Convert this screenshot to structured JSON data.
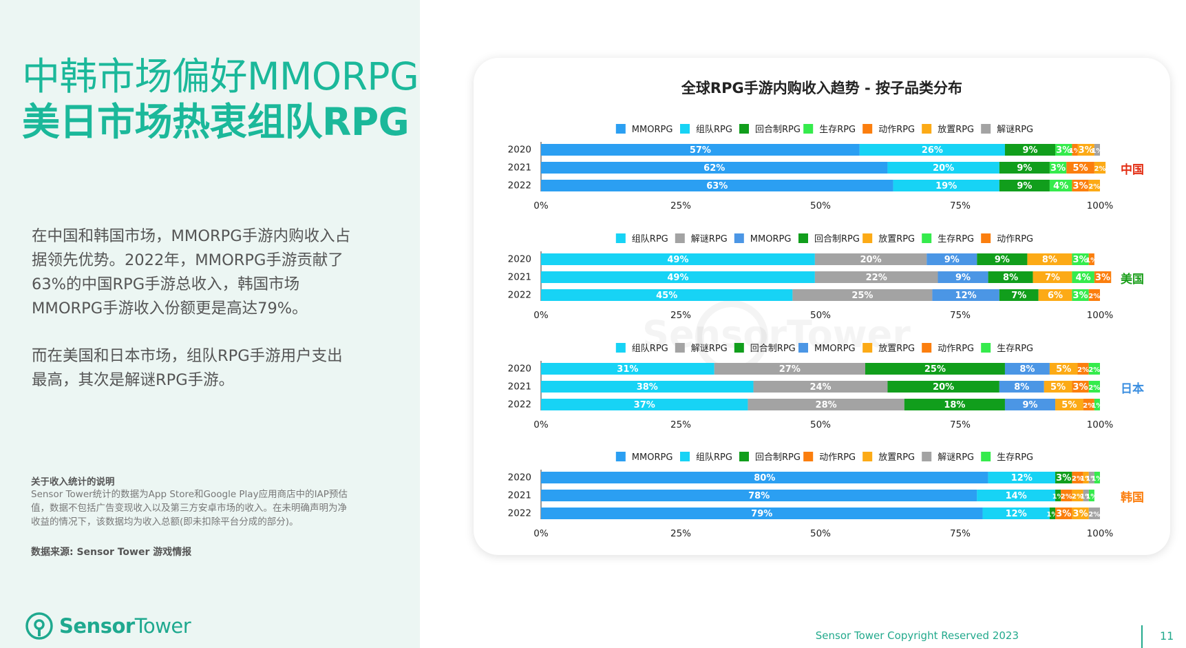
{
  "headline": {
    "line1": "中韩市场偏好MMORPG",
    "line2": "美日市场热衷组队RPG"
  },
  "body": {
    "para1": "在中国和韩国市场，MMORPG手游内购收入占据领先优势。2022年，MMORPG手游贡献了63%的中国RPG手游总收入，韩国市场MMORPG手游收入份额更是高达79%。",
    "para2": "而在美国和日本市场，组队RPG手游用户支出最高，其次是解谜RPG手游。"
  },
  "note": {
    "title": "关于收入统计的说明",
    "text": "Sensor Tower统计的数据为App Store和Google Play应用商店中的IAP预估值，数据不包括广告变现收入以及第三方安卓市场的收入。在未明确声明为净收益的情况下，该数据均为收入总额(即未扣除平台分成的部分)。"
  },
  "source": "数据来源: Sensor Tower 游戏情报",
  "logo": {
    "part1": "Sensor",
    "part2": "Tower",
    "icon": "sensor-tower-logo-icon"
  },
  "watermark": "SensorTower",
  "footer": {
    "copyright": "Sensor Tower Copyright Reserved 2023",
    "page": "11"
  },
  "colors": {
    "accent": "#1bb89a",
    "MMORPG": "#2b9ff2",
    "组队RPG": "#17d3f5",
    "回合制RPG": "#119e1c",
    "生存RPG": "#35eb4c",
    "动作RPG": "#fb7e0e",
    "放置RPG": "#fcaa16",
    "解谜RPG": "#a3a3a3",
    "MMORPG_us_jp": "#4b96e5"
  },
  "chart_data": {
    "title": "全球RPG手游内购收入趋势 - 按子品类分布",
    "type": "stacked_bar_horizontal",
    "x_ticks": [
      "0%",
      "25%",
      "50%",
      "75%",
      "100%"
    ],
    "xlim": [
      0,
      100
    ],
    "panels": [
      {
        "market": "中国",
        "market_color": "#e32e14",
        "legend_position": "top",
        "categories": [
          "2020",
          "2021",
          "2022"
        ],
        "series": [
          {
            "name": "MMORPG",
            "color": "#2b9ff2",
            "values": [
              57,
              62,
              63
            ]
          },
          {
            "name": "组队RPG",
            "color": "#17d3f5",
            "values": [
              26,
              20,
              19
            ]
          },
          {
            "name": "回合制RPG",
            "color": "#119e1c",
            "values": [
              9,
              9,
              9
            ]
          },
          {
            "name": "生存RPG",
            "color": "#35eb4c",
            "values": [
              3,
              3,
              4
            ]
          },
          {
            "name": "动作RPG",
            "color": "#fb7e0e",
            "values": [
              1,
              5,
              3
            ]
          },
          {
            "name": "放置RPG",
            "color": "#fcaa16",
            "values": [
              3,
              2,
              2
            ]
          },
          {
            "name": "解谜RPG",
            "color": "#a3a3a3",
            "values": [
              1,
              0,
              0
            ]
          }
        ]
      },
      {
        "market": "美国",
        "market_color": "#1a9e1a",
        "legend_position": "top",
        "categories": [
          "2020",
          "2021",
          "2022"
        ],
        "series": [
          {
            "name": "组队RPG",
            "color": "#17d3f5",
            "values": [
              49,
              49,
              45
            ]
          },
          {
            "name": "解谜RPG",
            "color": "#a3a3a3",
            "values": [
              20,
              22,
              25
            ]
          },
          {
            "name": "MMORPG",
            "color": "#4b96e5",
            "values": [
              9,
              9,
              12
            ]
          },
          {
            "name": "回合制RPG",
            "color": "#119e1c",
            "values": [
              9,
              8,
              7
            ]
          },
          {
            "name": "放置RPG",
            "color": "#fcaa16",
            "values": [
              8,
              7,
              6
            ]
          },
          {
            "name": "生存RPG",
            "color": "#35eb4c",
            "values": [
              3,
              4,
              3
            ]
          },
          {
            "name": "动作RPG",
            "color": "#fb7e0e",
            "values": [
              1,
              3,
              2
            ]
          }
        ]
      },
      {
        "market": "日本",
        "market_color": "#3a8ee0",
        "legend_position": "top",
        "categories": [
          "2020",
          "2021",
          "2022"
        ],
        "series": [
          {
            "name": "组队RPG",
            "color": "#17d3f5",
            "values": [
              31,
              38,
              37
            ]
          },
          {
            "name": "解谜RPG",
            "color": "#a3a3a3",
            "values": [
              27,
              24,
              28
            ]
          },
          {
            "name": "回合制RPG",
            "color": "#119e1c",
            "values": [
              25,
              20,
              18
            ]
          },
          {
            "name": "MMORPG",
            "color": "#4b96e5",
            "values": [
              8,
              8,
              9
            ]
          },
          {
            "name": "放置RPG",
            "color": "#fcaa16",
            "values": [
              5,
              5,
              5
            ]
          },
          {
            "name": "动作RPG",
            "color": "#fb7e0e",
            "values": [
              2,
              3,
              2
            ]
          },
          {
            "name": "生存RPG",
            "color": "#35eb4c",
            "values": [
              2,
              2,
              1
            ]
          }
        ]
      },
      {
        "market": "韩国",
        "market_color": "#fb7e0e",
        "legend_position": "top",
        "categories": [
          "2020",
          "2021",
          "2022"
        ],
        "series": [
          {
            "name": "MMORPG",
            "color": "#2b9ff2",
            "values": [
              80,
              78,
              79
            ]
          },
          {
            "name": "组队RPG",
            "color": "#17d3f5",
            "values": [
              12,
              14,
              12
            ]
          },
          {
            "name": "回合制RPG",
            "color": "#119e1c",
            "values": [
              3,
              1,
              1
            ]
          },
          {
            "name": "动作RPG",
            "color": "#fb7e0e",
            "values": [
              2,
              2,
              3
            ]
          },
          {
            "name": "放置RPG",
            "color": "#fcaa16",
            "values": [
              1,
              2,
              3
            ]
          },
          {
            "name": "解谜RPG",
            "color": "#a3a3a3",
            "values": [
              1,
              1,
              2
            ]
          },
          {
            "name": "生存RPG",
            "color": "#35eb4c",
            "values": [
              1,
              1,
              0
            ]
          }
        ]
      }
    ]
  }
}
